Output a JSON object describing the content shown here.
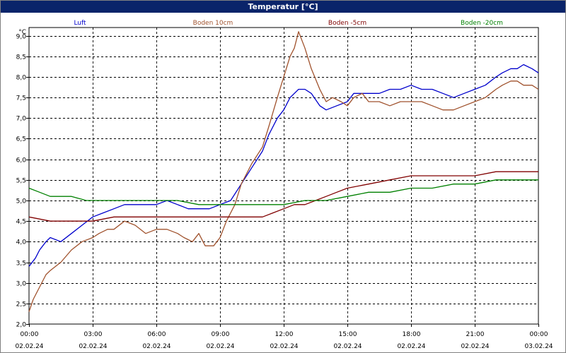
{
  "window": {
    "title": "Temperatur [°C]"
  },
  "chart_data": {
    "type": "line",
    "title": "Temperatur [°C]",
    "ylabel": "°C",
    "xlabel": "",
    "grid": true,
    "legend_position": "top",
    "ylim": [
      2.0,
      9.2
    ],
    "xlim": [
      0,
      24
    ],
    "yticks": [
      "2,0",
      "2,5",
      "3,0",
      "3,5",
      "4,0",
      "4,5",
      "5,0",
      "5,5",
      "6,0",
      "6,5",
      "7,0",
      "7,5",
      "8,0",
      "8,5",
      "9,0"
    ],
    "xticks": [
      {
        "time": "00:00",
        "date": "02.02.24"
      },
      {
        "time": "03:00",
        "date": "02.02.24"
      },
      {
        "time": "06:00",
        "date": "02.02.24"
      },
      {
        "time": "09:00",
        "date": "02.02.24"
      },
      {
        "time": "12:00",
        "date": "02.02.24"
      },
      {
        "time": "15:00",
        "date": "02.02.24"
      },
      {
        "time": "18:00",
        "date": "02.02.24"
      },
      {
        "time": "21:00",
        "date": "02.02.24"
      },
      {
        "time": "00:00",
        "date": "03.02.24"
      }
    ],
    "series": [
      {
        "name": "Luft",
        "color": "#0000cc",
        "x": [
          0,
          0.3,
          0.5,
          0.8,
          1,
          1.5,
          2,
          2.5,
          3,
          3.5,
          4,
          4.5,
          5,
          5.5,
          6,
          6.5,
          7,
          7.5,
          8,
          8.5,
          9,
          9.5,
          10,
          10.5,
          11,
          11.3,
          11.7,
          12,
          12.3,
          12.7,
          13,
          13.3,
          13.7,
          14,
          14.5,
          15,
          15.3,
          15.7,
          16,
          16.5,
          17,
          17.5,
          18,
          18.5,
          19,
          19.5,
          20,
          20.5,
          21,
          21.5,
          22,
          22.3,
          22.7,
          23,
          23.3,
          23.7,
          24
        ],
        "y": [
          3.4,
          3.6,
          3.8,
          4.0,
          4.1,
          4.0,
          4.2,
          4.4,
          4.6,
          4.7,
          4.8,
          4.9,
          4.9,
          4.9,
          4.9,
          5.0,
          4.9,
          4.8,
          4.8,
          4.8,
          4.9,
          5.0,
          5.4,
          5.8,
          6.2,
          6.6,
          7.0,
          7.2,
          7.5,
          7.7,
          7.7,
          7.6,
          7.3,
          7.2,
          7.3,
          7.4,
          7.6,
          7.6,
          7.6,
          7.6,
          7.7,
          7.7,
          7.8,
          7.7,
          7.7,
          7.6,
          7.5,
          7.6,
          7.7,
          7.8,
          8.0,
          8.1,
          8.2,
          8.2,
          8.3,
          8.2,
          8.1
        ]
      },
      {
        "name": "Boden 10cm",
        "color": "#a0522d",
        "x": [
          0,
          0.2,
          0.5,
          0.8,
          1,
          1.5,
          2,
          2.5,
          3,
          3.3,
          3.7,
          4,
          4.5,
          5,
          5.5,
          6,
          6.5,
          7,
          7.3,
          7.7,
          8,
          8.3,
          8.7,
          9,
          9.3,
          9.7,
          10,
          10.5,
          11,
          11.3,
          11.7,
          12,
          12.3,
          12.5,
          12.7,
          13,
          13.3,
          13.7,
          14,
          14.3,
          14.7,
          15,
          15.3,
          15.7,
          16,
          16.5,
          17,
          17.5,
          18,
          18.5,
          19,
          19.5,
          20,
          20.5,
          21,
          21.5,
          22,
          22.3,
          22.7,
          23,
          23.3,
          23.7,
          24
        ],
        "y": [
          2.3,
          2.6,
          2.9,
          3.2,
          3.3,
          3.5,
          3.8,
          4.0,
          4.1,
          4.2,
          4.3,
          4.3,
          4.5,
          4.4,
          4.2,
          4.3,
          4.3,
          4.2,
          4.1,
          4.0,
          4.2,
          3.9,
          3.9,
          4.1,
          4.5,
          4.9,
          5.4,
          5.9,
          6.3,
          6.8,
          7.5,
          8.0,
          8.5,
          8.7,
          9.1,
          8.7,
          8.2,
          7.7,
          7.4,
          7.5,
          7.4,
          7.3,
          7.5,
          7.6,
          7.4,
          7.4,
          7.3,
          7.4,
          7.4,
          7.4,
          7.3,
          7.2,
          7.2,
          7.3,
          7.4,
          7.5,
          7.7,
          7.8,
          7.9,
          7.9,
          7.8,
          7.8,
          7.7
        ]
      },
      {
        "name": "Boden -5cm",
        "color": "#800000",
        "x": [
          0,
          1,
          2,
          3,
          4,
          5,
          6,
          7,
          8,
          9,
          10,
          11,
          11.5,
          12,
          12.5,
          13,
          13.5,
          14,
          14.5,
          15,
          16,
          17,
          18,
          19,
          20,
          21,
          22,
          23,
          24
        ],
        "y": [
          4.6,
          4.5,
          4.5,
          4.5,
          4.6,
          4.6,
          4.6,
          4.6,
          4.6,
          4.6,
          4.6,
          4.6,
          4.7,
          4.8,
          4.9,
          4.9,
          5.0,
          5.1,
          5.2,
          5.3,
          5.4,
          5.5,
          5.6,
          5.6,
          5.6,
          5.6,
          5.7,
          5.7,
          5.7
        ]
      },
      {
        "name": "Boden -20cm",
        "color": "#008000",
        "x": [
          0,
          0.5,
          1,
          2,
          2.7,
          3,
          4,
          5,
          6,
          7,
          8,
          9,
          10,
          11,
          12,
          13,
          14,
          15,
          16,
          17,
          18,
          19,
          20,
          21,
          22,
          23,
          24
        ],
        "y": [
          5.3,
          5.2,
          5.1,
          5.1,
          5.0,
          5.0,
          5.0,
          5.0,
          5.0,
          5.0,
          4.9,
          4.9,
          4.9,
          4.9,
          4.9,
          5.0,
          5.0,
          5.1,
          5.2,
          5.2,
          5.3,
          5.3,
          5.4,
          5.4,
          5.5,
          5.5,
          5.5
        ]
      }
    ]
  }
}
